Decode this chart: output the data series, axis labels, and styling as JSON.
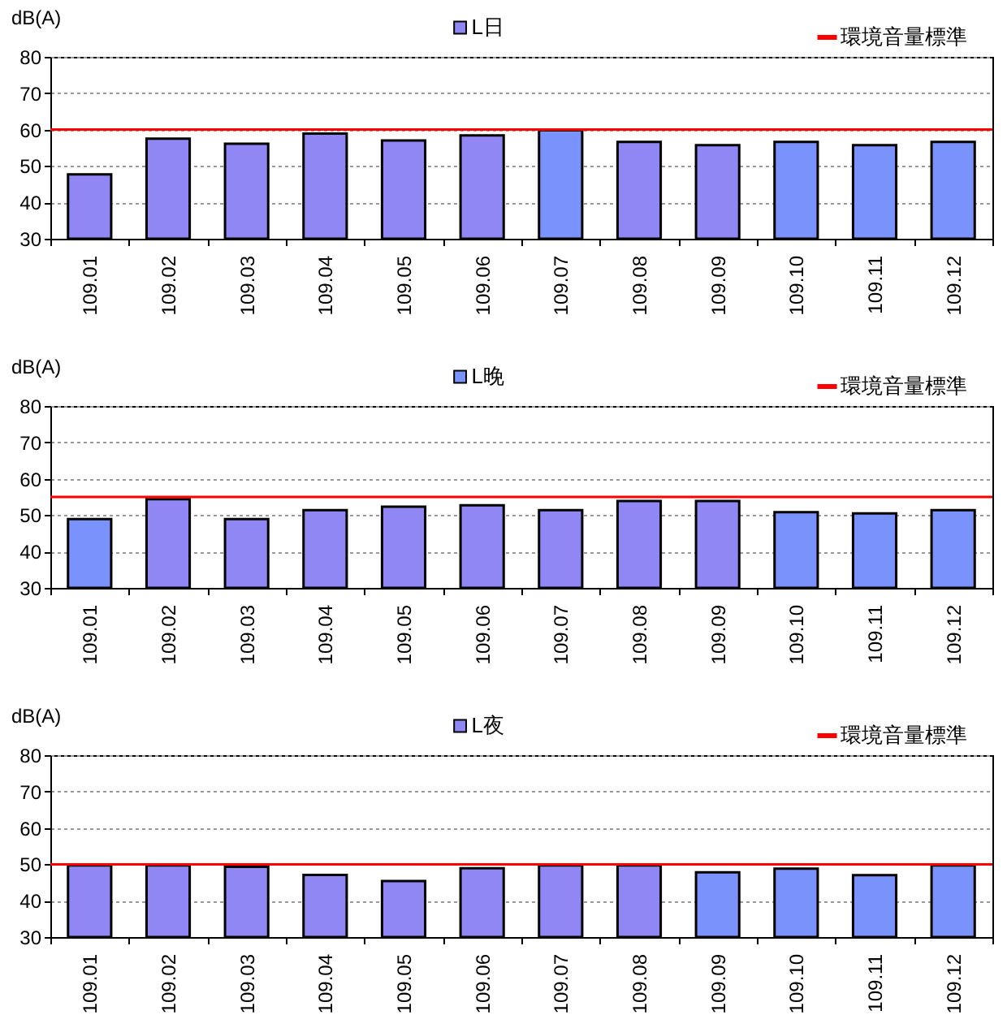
{
  "chart_data": [
    {
      "type": "bar",
      "ylabel": "dB(A)",
      "categories": [
        "109.01",
        "109.02",
        "109.03",
        "109.04",
        "109.05",
        "109.06",
        "109.07",
        "109.08",
        "109.09",
        "109.10",
        "109.11",
        "109.12"
      ],
      "series": [
        {
          "name": "L日",
          "color": "#9087f5",
          "colors": [
            "#9087f5",
            "#9087f5",
            "#9087f5",
            "#9087f5",
            "#9087f5",
            "#9087f5",
            "#7a92fb",
            "#9087f5",
            "#9087f5",
            "#7a92fb",
            "#7a92fb",
            "#7a92fb"
          ],
          "values": [
            47.7,
            57.5,
            56.1,
            58.9,
            57.0,
            58.4,
            59.8,
            56.6,
            55.7,
            56.6,
            55.7,
            56.6
          ]
        }
      ],
      "ylim": [
        30,
        80
      ],
      "yticks": [
        30,
        40,
        50,
        60,
        70,
        80
      ],
      "grid": "y",
      "legend": "top",
      "ref_lines": [
        {
          "axis": "y",
          "value": 60,
          "label": "環境音量標準",
          "color": "#ff0000"
        }
      ]
    },
    {
      "type": "bar",
      "ylabel": "dB(A)",
      "categories": [
        "109.01",
        "109.02",
        "109.03",
        "109.04",
        "109.05",
        "109.06",
        "109.07",
        "109.08",
        "109.09",
        "109.10",
        "109.11",
        "109.12"
      ],
      "series": [
        {
          "name": "L晚",
          "color": "#7a92fb",
          "colors": [
            "#7a92fb",
            "#9087f5",
            "#9087f5",
            "#9087f5",
            "#9087f5",
            "#9087f5",
            "#9087f5",
            "#9087f5",
            "#9087f5",
            "#7a92fb",
            "#7a92fb",
            "#7a92fb"
          ],
          "values": [
            48.9,
            54.4,
            48.9,
            51.4,
            52.3,
            52.7,
            51.4,
            53.9,
            53.9,
            50.8,
            50.5,
            51.4
          ]
        }
      ],
      "ylim": [
        30,
        80
      ],
      "yticks": [
        30,
        40,
        50,
        60,
        70,
        80
      ],
      "grid": "y",
      "legend": "top",
      "ref_lines": [
        {
          "axis": "y",
          "value": 55,
          "label": "環境音量標準",
          "color": "#ff0000"
        }
      ]
    },
    {
      "type": "bar",
      "ylabel": "dB(A)",
      "categories": [
        "109.01",
        "109.02",
        "109.03",
        "109.04",
        "109.05",
        "109.06",
        "109.07",
        "109.08",
        "109.09",
        "109.10",
        "109.11",
        "109.12"
      ],
      "series": [
        {
          "name": "L夜",
          "color": "#9087f5",
          "colors": [
            "#9087f5",
            "#9087f5",
            "#9087f5",
            "#9087f5",
            "#9087f5",
            "#9087f5",
            "#9087f5",
            "#9087f5",
            "#7a92fb",
            "#7a92fb",
            "#7a92fb",
            "#7a92fb"
          ],
          "values": [
            49.7,
            49.7,
            49.3,
            47.1,
            45.4,
            48.9,
            49.7,
            49.7,
            47.8,
            48.8,
            47.0,
            49.7
          ]
        }
      ],
      "ylim": [
        30,
        80
      ],
      "yticks": [
        30,
        40,
        50,
        60,
        70,
        80
      ],
      "grid": "y",
      "legend": "top",
      "ref_lines": [
        {
          "axis": "y",
          "value": 50,
          "label": "環境音量標準",
          "color": "#ff0000"
        }
      ]
    }
  ]
}
